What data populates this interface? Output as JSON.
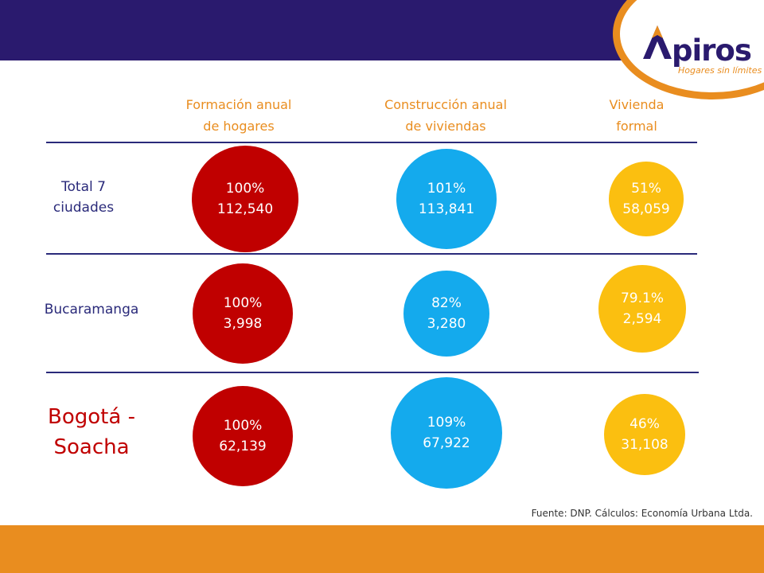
{
  "brand": {
    "name": "piros",
    "tagline": "Hogares sin límites",
    "colors": {
      "navy": "#2a1a6e",
      "orange": "#e98d1f",
      "red": "#c00000",
      "blue": "#14aaed",
      "yellow": "#fbbf10"
    }
  },
  "chart_data": {
    "type": "table",
    "columns": [
      "Formación anual\nde hogares",
      "Construcción anual\nde viviendas",
      "Vivienda\nformal"
    ],
    "rows": [
      {
        "label": "Total 7\nciudades",
        "values": [
          {
            "pct": "100%",
            "count": "112,540"
          },
          {
            "pct": "101%",
            "count": "113,841"
          },
          {
            "pct": "51%",
            "count": "58,059"
          }
        ]
      },
      {
        "label": "Bucaramanga",
        "values": [
          {
            "pct": "100%",
            "count": "3,998"
          },
          {
            "pct": "82%",
            "count": "3,280"
          },
          {
            "pct": "79.1%",
            "count": "2,594"
          }
        ]
      },
      {
        "label": "Bogotá -\nSoacha",
        "values": [
          {
            "pct": "100%",
            "count": "62,139"
          },
          {
            "pct": "109%",
            "count": "67,922"
          },
          {
            "pct": "46%",
            "count": "31,108"
          }
        ]
      }
    ],
    "series_numeric": [
      {
        "name": "Formación anual de hogares",
        "values": [
          112540,
          3998,
          62139
        ]
      },
      {
        "name": "Construcción anual de viviendas",
        "values": [
          113841,
          3280,
          67922
        ]
      },
      {
        "name": "Vivienda formal",
        "values": [
          58059,
          2594,
          31108
        ]
      }
    ],
    "source": "Fuente: DNP. Cálculos: Economía Urbana Ltda."
  }
}
